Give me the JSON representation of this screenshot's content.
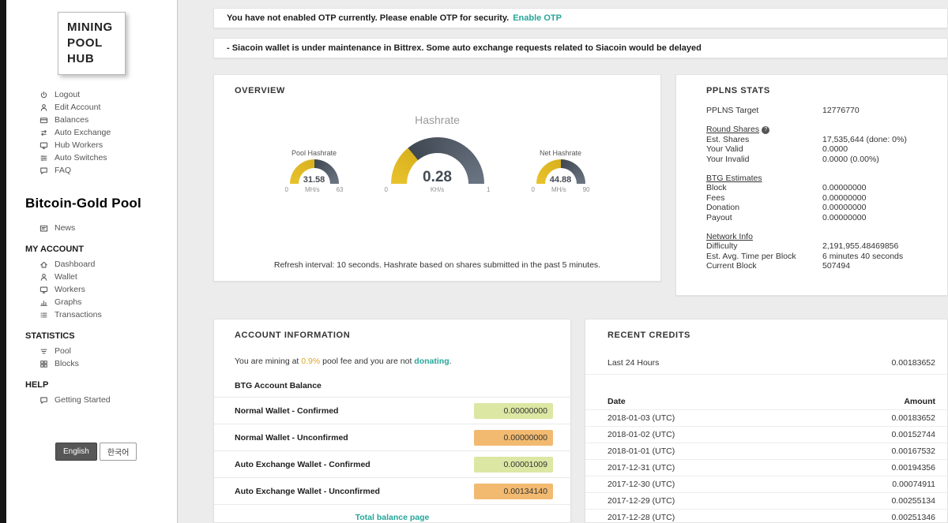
{
  "sidebar": {
    "logo": "MINING POOL HUB",
    "top_menu": [
      {
        "icon": "power-icon",
        "label": "Logout"
      },
      {
        "icon": "user-icon",
        "label": "Edit Account"
      },
      {
        "icon": "card-icon",
        "label": "Balances"
      },
      {
        "icon": "exchange-icon",
        "label": "Auto Exchange"
      },
      {
        "icon": "monitor-icon",
        "label": "Hub Workers"
      },
      {
        "icon": "switches-icon",
        "label": "Auto Switches"
      },
      {
        "icon": "chat-icon",
        "label": "FAQ"
      }
    ],
    "pool_title": "Bitcoin-Gold Pool",
    "sections": [
      {
        "header": "",
        "items": [
          {
            "icon": "news-icon",
            "label": "News"
          }
        ]
      },
      {
        "header": "MY ACCOUNT",
        "items": [
          {
            "icon": "home-icon",
            "label": "Dashboard"
          },
          {
            "icon": "user-icon",
            "label": "Wallet"
          },
          {
            "icon": "monitor-icon",
            "label": "Workers"
          },
          {
            "icon": "chart-icon",
            "label": "Graphs"
          },
          {
            "icon": "list-icon",
            "label": "Transactions"
          }
        ]
      },
      {
        "header": "STATISTICS",
        "items": [
          {
            "icon": "sort-icon",
            "label": "Pool"
          },
          {
            "icon": "blocks-icon",
            "label": "Blocks"
          }
        ]
      },
      {
        "header": "HELP",
        "items": [
          {
            "icon": "chat-icon",
            "label": "Getting Started"
          }
        ]
      }
    ],
    "languages": [
      "English",
      "한국어"
    ]
  },
  "notifications": [
    {
      "text": "You have not enabled OTP currently. Please enable OTP for security.",
      "link": "Enable OTP"
    },
    {
      "text": "- Siacoin wallet is under maintenance in Bittrex. Some auto exchange requests related to Siacoin would be delayed",
      "link": ""
    }
  ],
  "overview": {
    "title": "OVERVIEW",
    "subtitle": "Hashrate",
    "gauges": [
      {
        "name": "Pool Hashrate",
        "value": "31.58",
        "unit": "MH/s",
        "min": "0",
        "max": "63",
        "size": "small"
      },
      {
        "name": "",
        "value": "0.28",
        "unit": "KH/s",
        "min": "0",
        "max": "1",
        "size": "large"
      },
      {
        "name": "Net Hashrate",
        "value": "44.88",
        "unit": "MH/s",
        "min": "0",
        "max": "90",
        "size": "small"
      }
    ],
    "footnote": "Refresh interval: 10 seconds. Hashrate based on shares submitted in the past 5 minutes."
  },
  "pplns": {
    "title": "PPLNS STATS",
    "sections": [
      {
        "header": "",
        "help": false,
        "rows": [
          [
            "PPLNS Target",
            "12776770"
          ]
        ]
      },
      {
        "header": "Round Shares",
        "help": true,
        "rows": [
          [
            "Est. Shares",
            "17,535,644 (done: 0%)"
          ],
          [
            "Your Valid",
            "0.0000"
          ],
          [
            "Your Invalid",
            "0.0000 (0.00%)"
          ]
        ]
      },
      {
        "header": "BTG Estimates",
        "help": false,
        "rows": [
          [
            "Block",
            "0.00000000"
          ],
          [
            "Fees",
            "0.00000000"
          ],
          [
            "Donation",
            "0.00000000"
          ],
          [
            "Payout",
            "0.00000000"
          ]
        ]
      },
      {
        "header": "Network Info",
        "help": false,
        "rows": [
          [
            "Difficulty",
            "2,191,955.48469856"
          ],
          [
            "Est. Avg. Time per Block",
            "6 minutes 40 seconds"
          ],
          [
            "Current Block",
            "507494"
          ]
        ]
      }
    ]
  },
  "account": {
    "title": "ACCOUNT INFORMATION",
    "note": {
      "prefix": "You are mining at ",
      "fee": "0.9%",
      "middle": " pool fee and you are not ",
      "link": "donating",
      "suffix": "."
    },
    "balance_header": "BTG Account Balance",
    "rows": [
      {
        "label": "Normal Wallet - Confirmed",
        "value": "0.00000000",
        "style": "green"
      },
      {
        "label": "Normal Wallet - Unconfirmed",
        "value": "0.00000000",
        "style": "orange"
      },
      {
        "label": "Auto Exchange Wallet - Confirmed",
        "value": "0.00001009",
        "style": "green"
      },
      {
        "label": "Auto Exchange Wallet - Unconfirmed",
        "value": "0.00134140",
        "style": "orange"
      }
    ],
    "footer_link": "Total balance page"
  },
  "credits": {
    "title": "RECENT CREDITS",
    "summary": {
      "label": "Last 24 Hours",
      "value": "0.00183652"
    },
    "columns": [
      "Date",
      "Amount"
    ],
    "rows": [
      [
        "2018-01-03 (UTC)",
        "0.00183652"
      ],
      [
        "2018-01-02 (UTC)",
        "0.00152744"
      ],
      [
        "2018-01-01 (UTC)",
        "0.00167532"
      ],
      [
        "2017-12-31 (UTC)",
        "0.00194356"
      ],
      [
        "2017-12-30 (UTC)",
        "0.00074911"
      ],
      [
        "2017-12-29 (UTC)",
        "0.00255134"
      ],
      [
        "2017-12-28 (UTC)",
        "0.00251346"
      ]
    ]
  },
  "colors": {
    "accent": "#26a69a",
    "gauge_fill": "#e8c22c",
    "gauge_fill_end": "#d9b11e",
    "gauge_track": "#3f4752",
    "gauge_track_end": "#6b7482",
    "green_badge": "#dbe7a3",
    "orange_badge": "#f2ba70"
  }
}
